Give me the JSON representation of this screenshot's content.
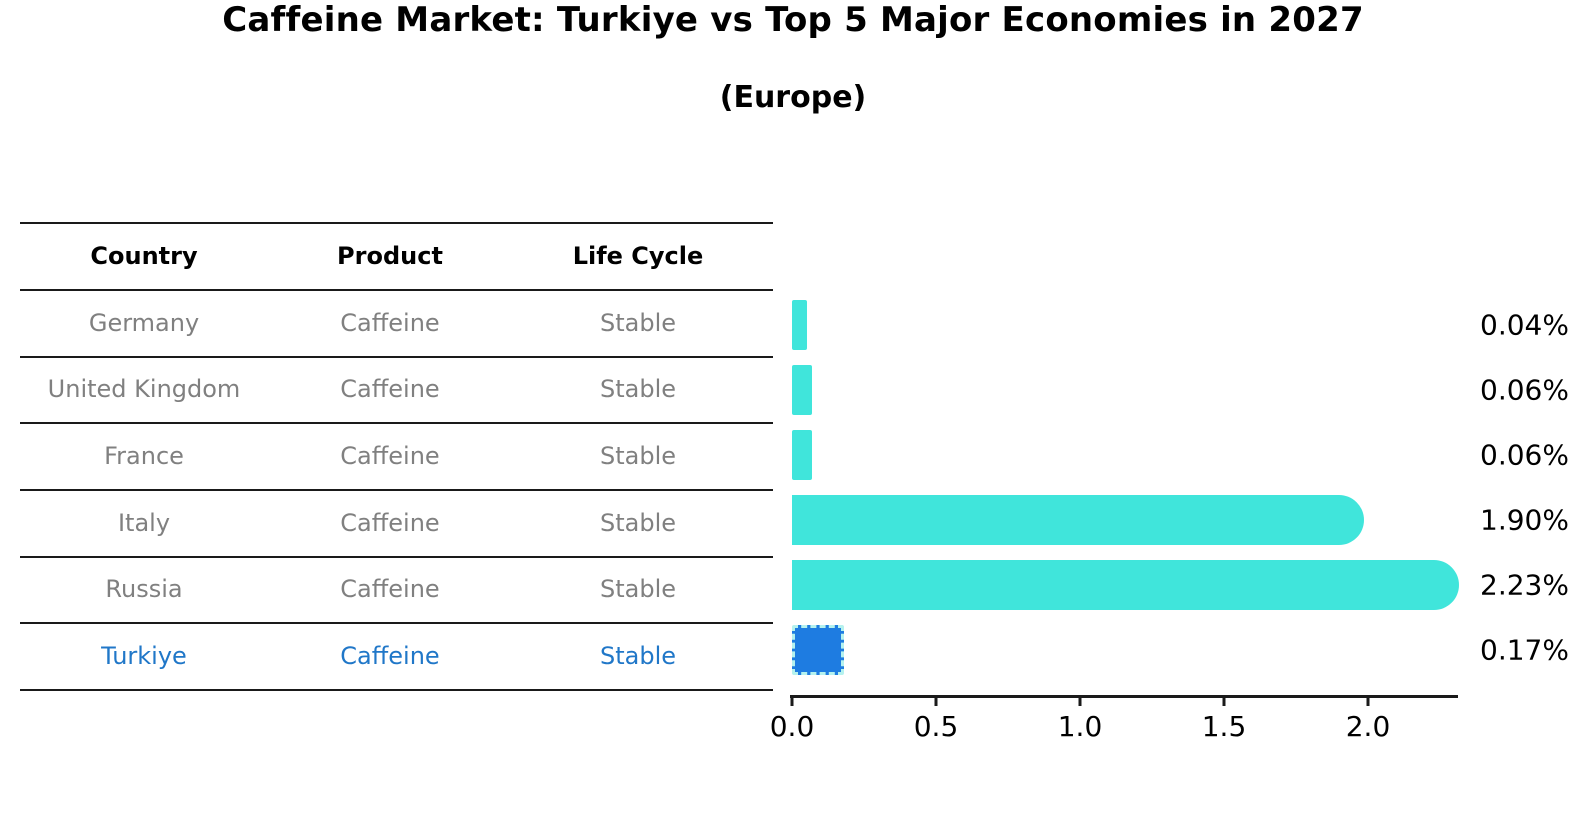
{
  "page_title": "Caffeine Market: Turkiye vs Top 5 Major Economies in 2027",
  "subtitle": "(Europe)",
  "table": {
    "headers": [
      "Country",
      "Product",
      "Life Cycle"
    ],
    "rows": [
      {
        "country": "Germany",
        "product": "Caffeine",
        "life_cycle": "Stable",
        "highlight": false
      },
      {
        "country": "United Kingdom",
        "product": "Caffeine",
        "life_cycle": "Stable",
        "highlight": false
      },
      {
        "country": "France",
        "product": "Caffeine",
        "life_cycle": "Stable",
        "highlight": false
      },
      {
        "country": "Italy",
        "product": "Caffeine",
        "life_cycle": "Stable",
        "highlight": false
      },
      {
        "country": "Russia",
        "product": "Caffeine",
        "life_cycle": "Stable",
        "highlight": false
      },
      {
        "country": "Turkiye",
        "product": "Caffeine",
        "life_cycle": "Stable",
        "highlight": true
      }
    ]
  },
  "chart_data": {
    "type": "bar",
    "orientation": "horizontal",
    "title": "Caffeine Market: Turkiye vs Top 5 Major Economies in 2027",
    "subtitle": "(Europe)",
    "categories": [
      "Germany",
      "United Kingdom",
      "France",
      "Italy",
      "Russia",
      "Turkiye"
    ],
    "values": [
      0.04,
      0.06,
      0.06,
      1.9,
      2.23,
      0.17
    ],
    "value_labels": [
      "0.04%",
      "0.06%",
      "0.06%",
      "1.90%",
      "2.23%",
      "0.17%"
    ],
    "highlight_category": "Turkiye",
    "highlight_index": 5,
    "x_ticks": [
      0.0,
      0.5,
      1.0,
      1.5,
      2.0
    ],
    "x_tick_labels": [
      "0.0",
      "0.5",
      "1.0",
      "1.5",
      "2.0"
    ],
    "xlim": [
      0,
      2.32
    ],
    "xlabel": "",
    "ylabel": "",
    "grid": false,
    "legend": false
  },
  "colors": {
    "bar": "#40e5db",
    "highlight_bar": "#1e7ce1",
    "highlight_bar_border": "#b5f2ee",
    "highlight_text": "#2077c8",
    "table_text": "#808080",
    "header_text": "#000000",
    "axis_line": "#1a1a1a"
  }
}
